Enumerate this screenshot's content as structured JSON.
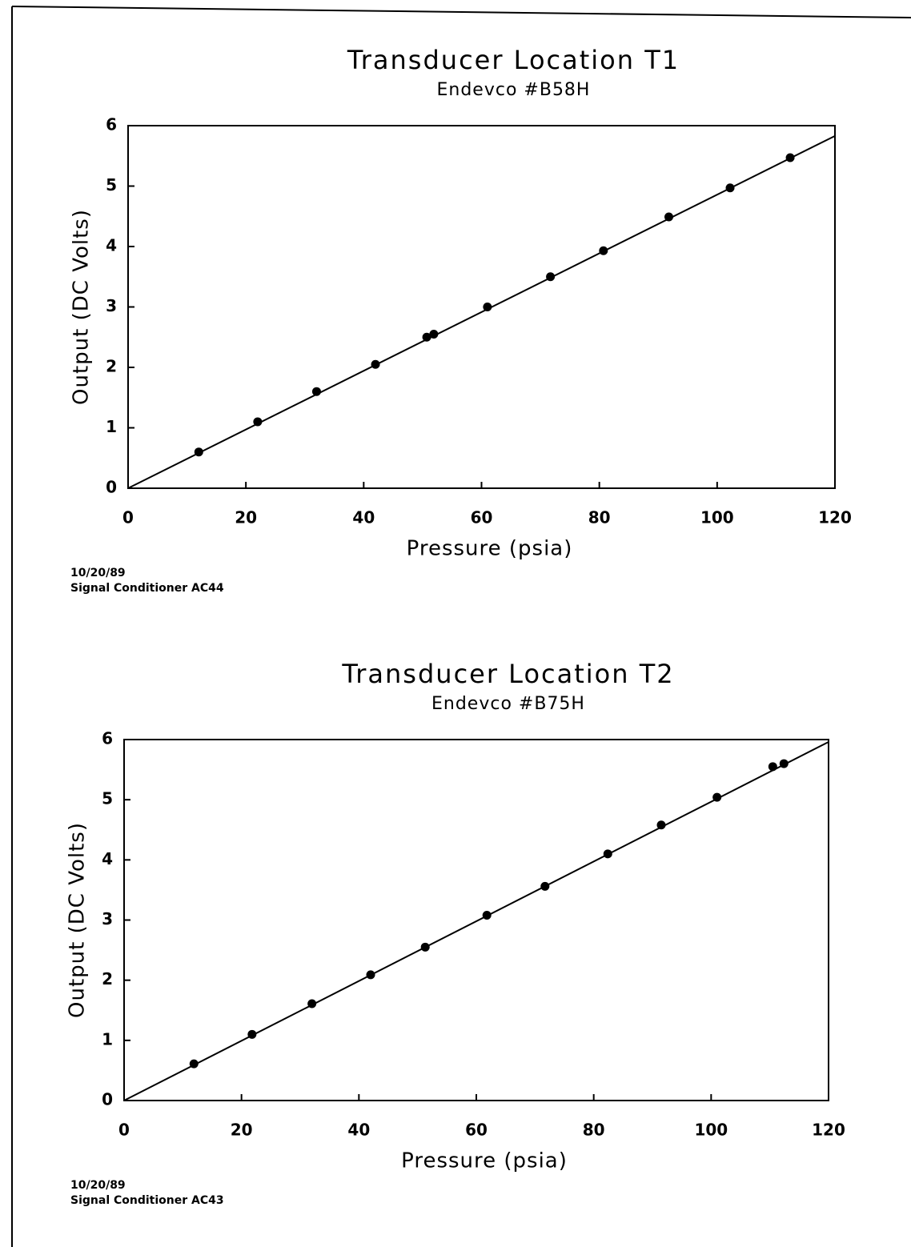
{
  "chart_data": [
    {
      "type": "scatter",
      "title": "Transducer Location T1",
      "subtitle": "Endevco #B58H",
      "x_label": "Pressure (psia)",
      "y_label": "Output (DC Volts)",
      "footnotes": [
        "10/20/89",
        "Signal Conditioner AC44"
      ],
      "xlim": [
        0,
        120
      ],
      "ylim": [
        0,
        6
      ],
      "xticks": [
        0,
        20,
        40,
        60,
        80,
        100,
        120
      ],
      "yticks": [
        0,
        1,
        2,
        3,
        4,
        5,
        6
      ],
      "color": "#000000",
      "points": {
        "x": [
          12,
          22,
          32,
          42,
          50.7,
          51.9,
          61,
          71.7,
          80.7,
          91.8,
          102.2,
          112.4
        ],
        "values": [
          0.6,
          1.1,
          1.6,
          2.05,
          2.5,
          2.55,
          3.0,
          3.5,
          3.93,
          4.49,
          4.97,
          5.47
        ]
      },
      "fit_line": {
        "x": [
          0,
          120
        ],
        "values": [
          0,
          5.83
        ]
      }
    },
    {
      "type": "scatter",
      "title": "Transducer Location T2",
      "subtitle": "Endevco #B75H",
      "x_label": "Pressure (psia)",
      "y_label": "Output (DC Volts)",
      "footnotes": [
        "10/20/89",
        "Signal Conditioner AC43"
      ],
      "xlim": [
        0,
        120
      ],
      "ylim": [
        0,
        6
      ],
      "xticks": [
        0,
        20,
        40,
        60,
        80,
        100,
        120
      ],
      "yticks": [
        0,
        1,
        2,
        3,
        4,
        5,
        6
      ],
      "color": "#000000",
      "points": {
        "x": [
          11.9,
          21.8,
          32,
          42,
          51.3,
          61.8,
          71.7,
          82.4,
          91.5,
          101,
          110.5,
          112.4
        ],
        "values": [
          0.61,
          1.1,
          1.61,
          2.09,
          2.55,
          3.08,
          3.56,
          4.1,
          4.58,
          5.04,
          5.55,
          5.6
        ]
      },
      "fit_line": {
        "x": [
          0,
          120
        ],
        "values": [
          0,
          5.96
        ]
      }
    }
  ]
}
